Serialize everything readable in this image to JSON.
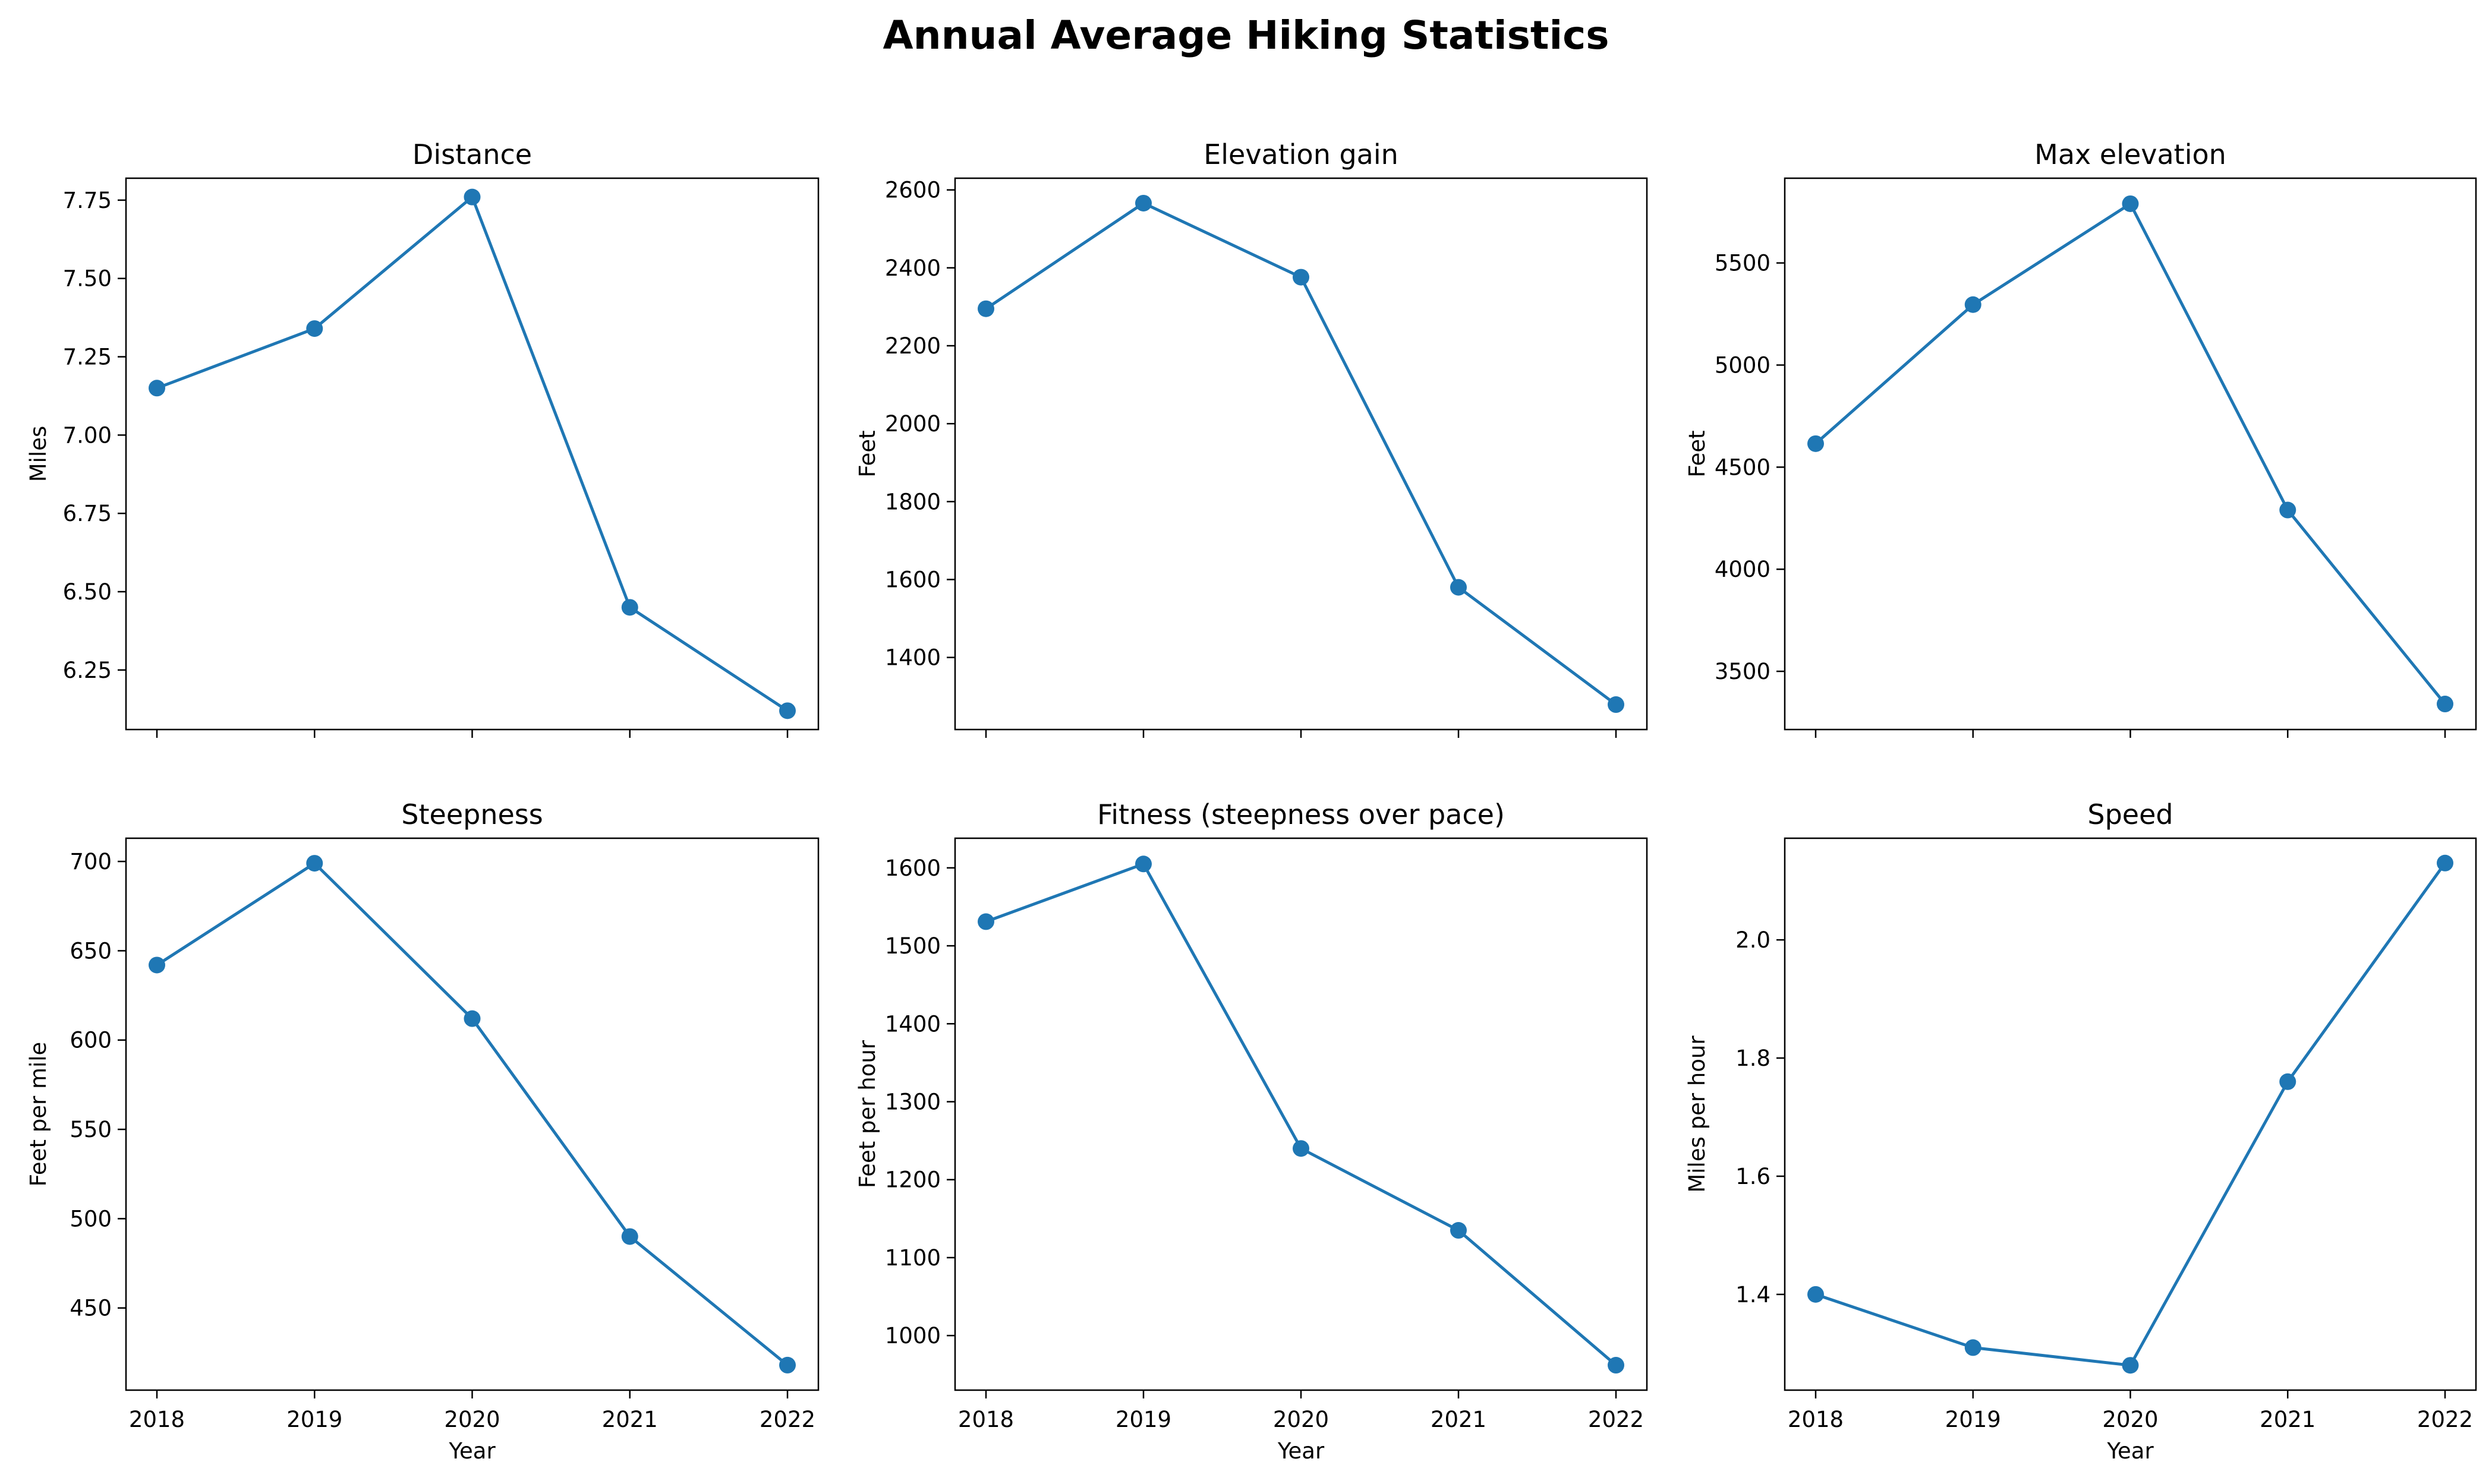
{
  "figure": {
    "title": "Annual Average Hiking Statistics",
    "line_color": "#1f77b4"
  },
  "chart_data": [
    {
      "type": "line",
      "title": "Distance",
      "xlabel": "",
      "ylabel": "Miles",
      "categories": [
        "2018",
        "2019",
        "2020",
        "2021",
        "2022"
      ],
      "values": [
        7.15,
        7.34,
        7.76,
        6.45,
        6.12
      ],
      "ylim": [
        6.06,
        7.82
      ],
      "yticks": [
        6.25,
        6.5,
        6.75,
        7.0,
        7.25,
        7.5,
        7.75
      ],
      "ytick_labels": [
        "6.25",
        "6.50",
        "6.75",
        "7.00",
        "7.25",
        "7.50",
        "7.75"
      ],
      "show_xtick_labels": false,
      "grid": false,
      "marker": "circle"
    },
    {
      "type": "line",
      "title": "Elevation gain",
      "xlabel": "",
      "ylabel": "Feet",
      "categories": [
        "2018",
        "2019",
        "2020",
        "2021",
        "2022"
      ],
      "values": [
        2295,
        2566,
        2376,
        1580,
        1279
      ],
      "ylim": [
        1215,
        2630
      ],
      "yticks": [
        1400,
        1600,
        1800,
        2000,
        2200,
        2400,
        2600
      ],
      "ytick_labels": [
        "1400",
        "1600",
        "1800",
        "2000",
        "2200",
        "2400",
        "2600"
      ],
      "show_xtick_labels": false,
      "grid": false,
      "marker": "circle"
    },
    {
      "type": "line",
      "title": "Max elevation",
      "xlabel": "",
      "ylabel": "Feet",
      "categories": [
        "2018",
        "2019",
        "2020",
        "2021",
        "2022"
      ],
      "values": [
        4615,
        5296,
        5790,
        4290,
        3340
      ],
      "ylim": [
        3215,
        5915
      ],
      "yticks": [
        3500,
        4000,
        4500,
        5000,
        5500
      ],
      "ytick_labels": [
        "3500",
        "4000",
        "4500",
        "5000",
        "5500"
      ],
      "show_xtick_labels": false,
      "grid": false,
      "marker": "circle"
    },
    {
      "type": "line",
      "title": "Steepness",
      "xlabel": "Year",
      "ylabel": "Feet per mile",
      "categories": [
        "2018",
        "2019",
        "2020",
        "2021",
        "2022"
      ],
      "values": [
        642,
        699,
        612,
        490,
        418
      ],
      "ylim": [
        404,
        713
      ],
      "yticks": [
        450,
        500,
        550,
        600,
        650,
        700
      ],
      "ytick_labels": [
        "450",
        "500",
        "550",
        "600",
        "650",
        "700"
      ],
      "show_xtick_labels": true,
      "grid": false,
      "marker": "circle"
    },
    {
      "type": "line",
      "title": "Fitness (steepness over pace)",
      "xlabel": "Year",
      "ylabel": "Feet per hour",
      "categories": [
        "2018",
        "2019",
        "2020",
        "2021",
        "2022"
      ],
      "values": [
        1531,
        1605,
        1240,
        1135,
        962
      ],
      "ylim": [
        930,
        1638
      ],
      "yticks": [
        1000,
        1100,
        1200,
        1300,
        1400,
        1500,
        1600
      ],
      "ytick_labels": [
        "1000",
        "1100",
        "1200",
        "1300",
        "1400",
        "1500",
        "1600"
      ],
      "show_xtick_labels": true,
      "grid": false,
      "marker": "circle"
    },
    {
      "type": "line",
      "title": "Speed",
      "xlabel": "Year",
      "ylabel": "Miles per hour",
      "categories": [
        "2018",
        "2019",
        "2020",
        "2021",
        "2022"
      ],
      "values": [
        1.4,
        1.31,
        1.28,
        1.76,
        2.13
      ],
      "ylim": [
        1.238,
        2.172
      ],
      "yticks": [
        1.4,
        1.6,
        1.8,
        2.0
      ],
      "ytick_labels": [
        "1.4",
        "1.6",
        "1.8",
        "2.0"
      ],
      "show_xtick_labels": true,
      "grid": false,
      "marker": "circle"
    }
  ]
}
